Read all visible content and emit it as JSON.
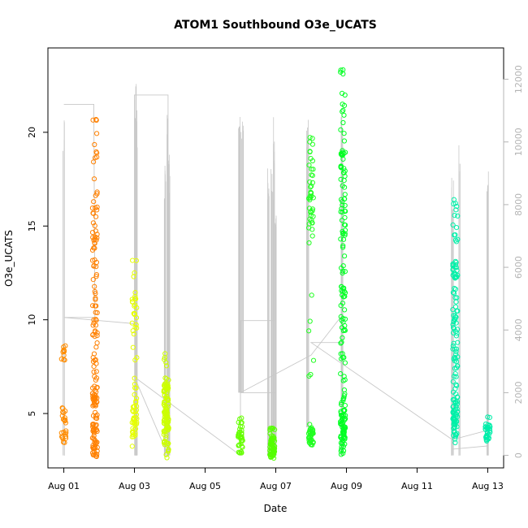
{
  "chart_data": {
    "type": "scatter",
    "title": "ATOM1 Southbound O3e_UCATS",
    "xlabel": "Date",
    "ylabel": "O3e_UCATS",
    "x_ticks": [
      {
        "label": "Aug 01",
        "day": 1
      },
      {
        "label": "Aug 03",
        "day": 3
      },
      {
        "label": "Aug 05",
        "day": 5
      },
      {
        "label": "Aug 07",
        "day": 7
      },
      {
        "label": "Aug 09",
        "day": 9
      },
      {
        "label": "Aug 11",
        "day": 11
      },
      {
        "label": "Aug 13",
        "day": 13
      }
    ],
    "xlim": [
      0.55,
      13.45
    ],
    "ylim": [
      2.1,
      24.5
    ],
    "y_ticks": [
      5,
      10,
      15,
      20
    ],
    "y2_ticks": [
      0,
      2000,
      4000,
      6000,
      8000,
      10000,
      12000
    ],
    "y2lim": [
      -400,
      13000
    ],
    "grid": false,
    "legend": "none",
    "series": [
      {
        "day": 1.0,
        "color": "#ff8c00",
        "clusters": [
          {
            "center": 4.2,
            "lo": 3.4,
            "hi": 5.5,
            "n": 24
          },
          {
            "center": 8.2,
            "lo": 7.1,
            "hi": 9.0,
            "n": 10
          }
        ]
      },
      {
        "day": 1.88,
        "color": "#ff8000",
        "clusters": [
          {
            "center": 4.5,
            "lo": 2.7,
            "hi": 9.0,
            "n": 90
          },
          {
            "center": 13.0,
            "lo": 9.0,
            "hi": 22.0,
            "n": 70
          }
        ]
      },
      {
        "day": 3.0,
        "color": "#e6ff00",
        "clusters": [
          {
            "center": 4.6,
            "lo": 3.2,
            "hi": 6.5,
            "n": 40
          },
          {
            "center": 10.5,
            "lo": 6.5,
            "hi": 13.6,
            "n": 30
          }
        ]
      },
      {
        "day": 3.9,
        "color": "#ccff00",
        "clusters": [
          {
            "center": 5.0,
            "lo": 2.6,
            "hi": 8.3,
            "n": 110
          }
        ]
      },
      {
        "day": 6.0,
        "color": "#66ff00",
        "clusters": [
          {
            "center": 3.4,
            "lo": 2.9,
            "hi": 5.0,
            "n": 40
          }
        ]
      },
      {
        "day": 6.9,
        "color": "#55ff00",
        "clusters": [
          {
            "center": 3.2,
            "lo": 2.6,
            "hi": 4.3,
            "n": 70
          }
        ]
      },
      {
        "day": 8.0,
        "color": "#22ff22",
        "clusters": [
          {
            "center": 3.8,
            "lo": 3.3,
            "hi": 4.5,
            "n": 40
          },
          {
            "center": 16.5,
            "lo": 14.0,
            "hi": 19.8,
            "n": 45
          },
          {
            "center": 8.0,
            "lo": 6.5,
            "hi": 11.8,
            "n": 6
          }
        ]
      },
      {
        "day": 8.9,
        "color": "#00ff22",
        "clusters": [
          {
            "center": 4.2,
            "lo": 2.7,
            "hi": 6.0,
            "n": 70
          },
          {
            "center": 14.0,
            "lo": 6.0,
            "hi": 23.6,
            "n": 110
          }
        ]
      },
      {
        "day": 12.08,
        "color": "#00f0a8",
        "clusters": [
          {
            "center": 4.5,
            "lo": 3.4,
            "hi": 6.0,
            "n": 60
          },
          {
            "center": 10.0,
            "lo": 6.0,
            "hi": 16.5,
            "n": 90
          }
        ]
      },
      {
        "day": 13.0,
        "color": "#00eeaa",
        "clusters": [
          {
            "center": 4.0,
            "lo": 3.4,
            "hi": 4.9,
            "n": 35
          }
        ]
      }
    ],
    "secondary_series": {
      "color": "#c8c8c8",
      "spikes": [
        {
          "day": 1.0,
          "lo": 0,
          "hi": 11200
        },
        {
          "day": 3.03,
          "lo": 0,
          "hi": 12200
        },
        {
          "day": 3.05,
          "lo": 0,
          "hi": 11300
        },
        {
          "day": 3.85,
          "lo": 0,
          "hi": 9400
        },
        {
          "day": 3.93,
          "lo": 0,
          "hi": 10900
        },
        {
          "day": 3.98,
          "lo": 0,
          "hi": 9600
        },
        {
          "day": 5.98,
          "lo": 2000,
          "hi": 11200
        },
        {
          "day": 6.05,
          "lo": 2000,
          "hi": 11200
        },
        {
          "day": 6.8,
          "lo": 0,
          "hi": 9500
        },
        {
          "day": 6.9,
          "lo": 0,
          "hi": 9600
        },
        {
          "day": 6.95,
          "lo": 0,
          "hi": 10800
        },
        {
          "day": 7.0,
          "lo": 0,
          "hi": 7800
        },
        {
          "day": 7.9,
          "lo": 900,
          "hi": 11200
        },
        {
          "day": 8.88,
          "lo": 0,
          "hi": 11000
        },
        {
          "day": 12.0,
          "lo": 0,
          "hi": 9200
        },
        {
          "day": 12.2,
          "lo": 0,
          "hi": 10100
        },
        {
          "day": 13.0,
          "lo": 0,
          "hi": 9100
        }
      ],
      "path": [
        [
          1.0,
          11200
        ],
        [
          1.85,
          11200
        ],
        [
          1.88,
          4400
        ],
        [
          1.0,
          4400
        ],
        [
          3.0,
          4200
        ],
        [
          3.0,
          11500
        ],
        [
          3.95,
          11500
        ],
        [
          3.95,
          0
        ],
        [
          3.0,
          2500
        ],
        [
          6.0,
          0
        ],
        [
          6.0,
          4300
        ],
        [
          7.0,
          4300
        ],
        [
          7.0,
          2000
        ],
        [
          6.0,
          2000
        ],
        [
          8.0,
          3200
        ],
        [
          8.9,
          4500
        ],
        [
          8.9,
          3600
        ],
        [
          8.0,
          3600
        ],
        [
          12.0,
          500
        ],
        [
          13.0,
          800
        ],
        [
          13.0,
          300
        ],
        [
          12.0,
          200
        ]
      ]
    }
  }
}
